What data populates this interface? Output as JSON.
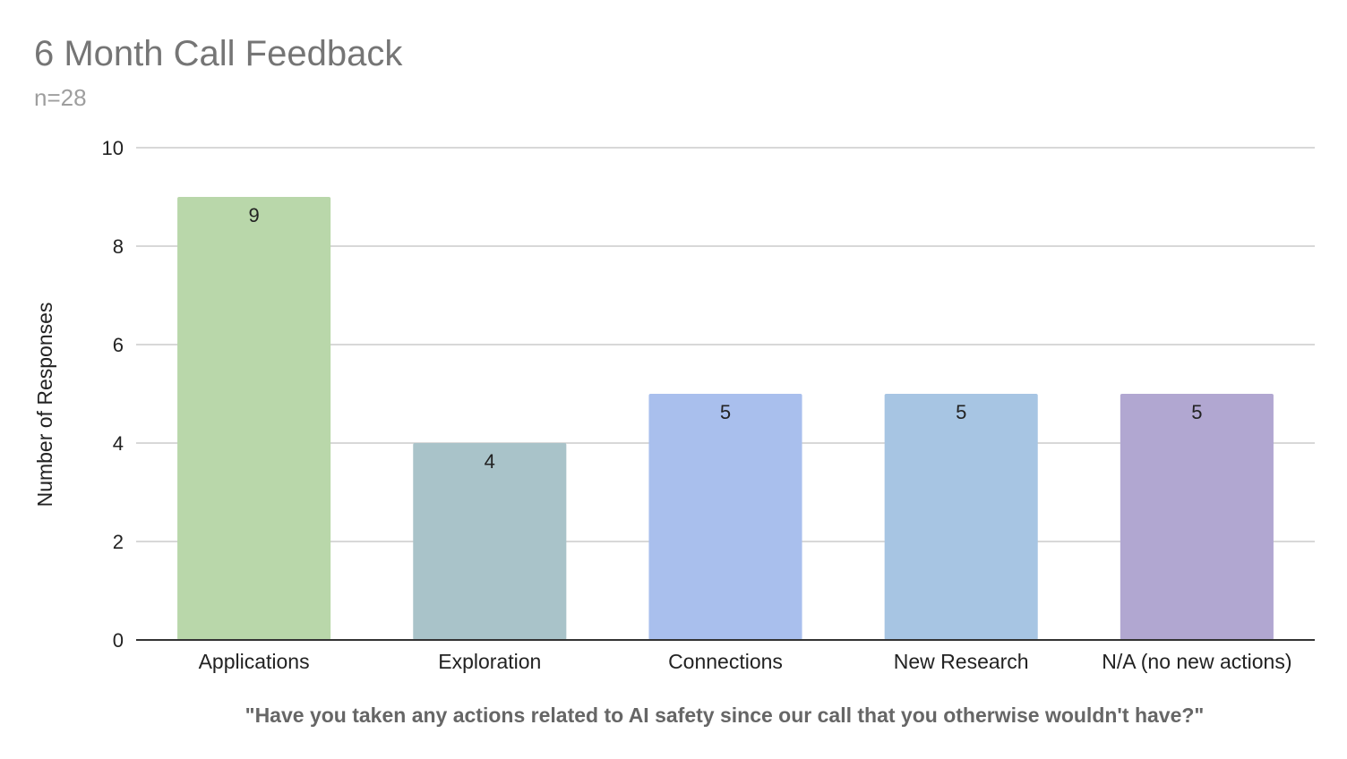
{
  "chart_data": {
    "type": "bar",
    "title": "6 Month Call Feedback",
    "subtitle": "n=28",
    "xlabel": "\"Have you taken any actions related to AI safety since our call that you otherwise wouldn't have?\"",
    "ylabel": "Number of Responses",
    "categories": [
      "Applications",
      "Exploration",
      "Connections",
      "New Research",
      "N/A (no new actions)"
    ],
    "values": [
      9,
      4,
      5,
      5,
      5
    ],
    "colors": [
      "#b9d7aa",
      "#a9c3c9",
      "#a9bfed",
      "#a7c5e3",
      "#b1a7d1"
    ],
    "ylim": [
      0,
      10
    ],
    "yticks": [
      0,
      2,
      4,
      6,
      8,
      10
    ],
    "grid": true,
    "data_labels": true,
    "legend": "none"
  }
}
